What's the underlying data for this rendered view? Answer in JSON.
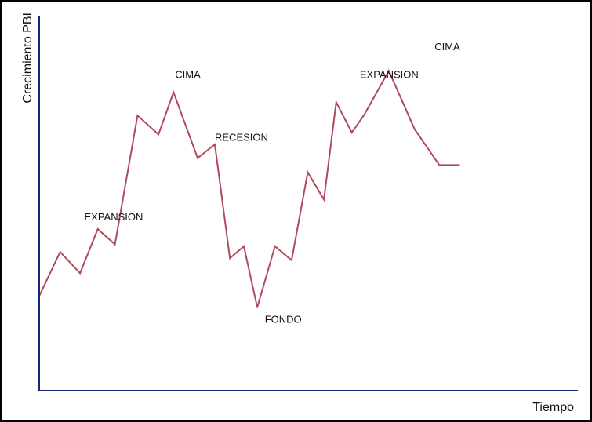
{
  "chart_data": {
    "type": "line",
    "title": "",
    "xlabel": "Tiempo",
    "ylabel": "Crecimiento PBI",
    "xticks": "none",
    "yticks": "none",
    "grid": false,
    "legend": "none",
    "xlim": [
      0,
      100
    ],
    "ylim": [
      0,
      100
    ],
    "series": [
      {
        "name": "",
        "color": "#b04a5a",
        "x": [
          0,
          3.9,
          7.6,
          10.9,
          14.1,
          18.3,
          22.2,
          25.0,
          29.5,
          32.7,
          35.5,
          38.1,
          40.6,
          43.9,
          47.0,
          50.0,
          53.0,
          55.3,
          58.2,
          60.5,
          65.1,
          69.9,
          74.5,
          78.2
        ],
        "y": [
          28.5,
          41.8,
          35.4,
          48.7,
          44.1,
          82.9,
          77.2,
          89.9,
          70.1,
          74.2,
          39.9,
          43.5,
          25.1,
          43.5,
          39.3,
          65.8,
          57.6,
          86.9,
          77.8,
          83.1,
          96.4,
          78.8,
          68.0,
          68.0
        ]
      }
    ],
    "annotations": [
      {
        "text": "EXPANSION",
        "x": 8.4,
        "y": 51.3
      },
      {
        "text": "CIMA",
        "x": 25.3,
        "y": 94.2
      },
      {
        "text": "RECESION",
        "x": 32.7,
        "y": 75.3
      },
      {
        "text": "FONDO",
        "x": 42.0,
        "y": 20.5
      },
      {
        "text": "EXPANSION",
        "x": 59.7,
        "y": 94.2
      },
      {
        "text": "CIMA",
        "x": 73.6,
        "y": 102.6
      }
    ],
    "axis_color": "#1a237e"
  }
}
